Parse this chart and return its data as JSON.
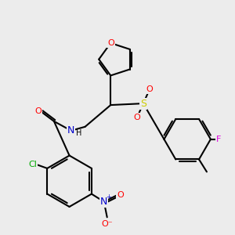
{
  "bg_color": "#ececec",
  "bond_color": "#000000",
  "bond_width": 1.5,
  "atom_colors": {
    "O": "#ff0000",
    "N": "#0000cc",
    "S": "#cccc00",
    "Cl": "#00aa00",
    "F": "#dd00dd",
    "H": "#000000"
  },
  "figsize": [
    3.0,
    3.0
  ],
  "dpi": 100
}
